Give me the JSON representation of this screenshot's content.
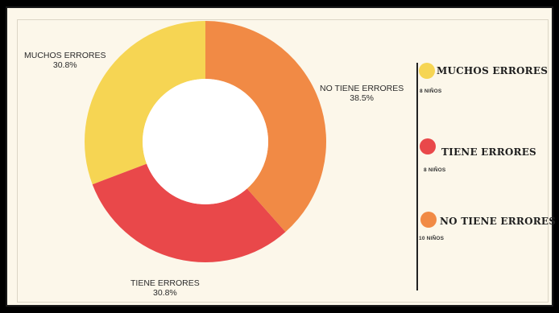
{
  "chart_data": {
    "type": "pie",
    "donut": true,
    "categories": [
      "MUCHOS ERRORES",
      "TIENE ERRORES",
      "NO TIENE ERRORES"
    ],
    "values": [
      30.8,
      30.8,
      38.5
    ],
    "percent_labels": [
      "30.8%",
      "30.8%",
      "38.5%"
    ],
    "counts": [
      "8 NIÑOS",
      "8 NIÑOS",
      "10 NIÑOS"
    ],
    "colors": [
      "#f6d553",
      "#e9484a",
      "#f18a45"
    ],
    "legend_placement": "right",
    "title": ""
  }
}
